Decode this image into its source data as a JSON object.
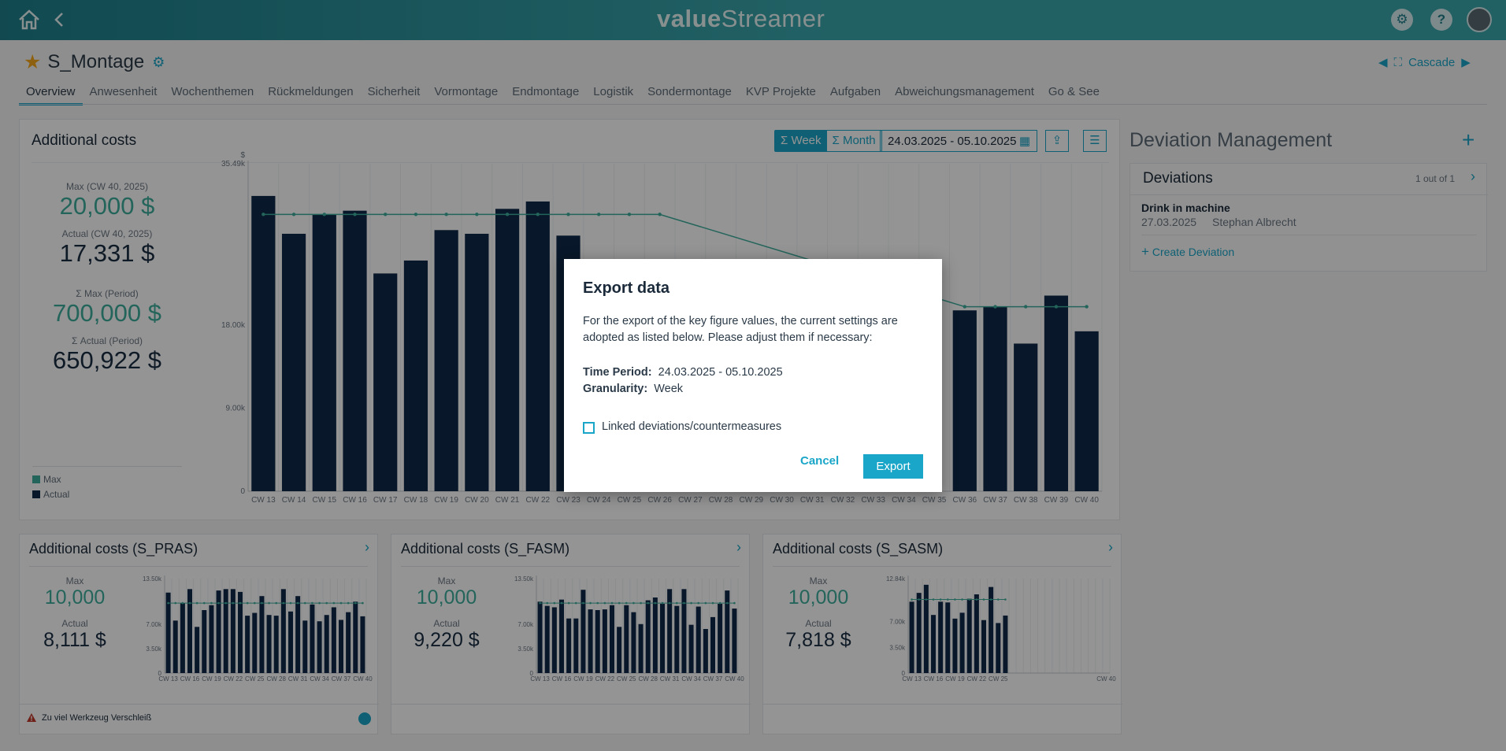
{
  "topbar": {
    "logo_left": "value",
    "logo_right": "Streamer",
    "help_label": "?"
  },
  "header": {
    "title": "S_Montage",
    "cascade_label": "Cascade"
  },
  "tabs": [
    "Overview",
    "Anwesenheit",
    "Wochenthemen",
    "Rückmeldungen",
    "Sicherheit",
    "Vormontage",
    "Endmontage",
    "Logistik",
    "Sondermontage",
    "KVP Projekte",
    "Aufgaben",
    "Abweichungsmanagement",
    "Go & See"
  ],
  "main": {
    "title": "Additional costs",
    "week_label": "Σ Week",
    "month_label": "Σ Month",
    "date_range": "24.03.2025 - 05.10.2025",
    "max_label": "Max (CW 40, 2025)",
    "max_value": "20,000 $",
    "actual_label": "Actual (CW 40, 2025)",
    "actual_value": "17,331 $",
    "sum_max_label": "Σ Max (Period)",
    "sum_max_value": "700,000 $",
    "sum_actual_label": "Σ Actual (Period)",
    "sum_actual_value": "650,922 $",
    "legend_max": "Max",
    "legend_actual": "Actual"
  },
  "chart_data": [
    {
      "type": "bar",
      "title": "Additional costs",
      "ylabel": "$",
      "ylim": [
        0,
        35490
      ],
      "yticks": [
        "35.49k",
        "18.00k",
        "9.00k",
        "0"
      ],
      "categories": [
        "CW 13",
        "CW 14",
        "CW 15",
        "CW 16",
        "CW 17",
        "CW 18",
        "CW 19",
        "CW 20",
        "CW 21",
        "CW 22",
        "CW 23",
        "CW 24",
        "CW 25",
        "CW 26",
        "CW 27",
        "CW 28",
        "CW 29",
        "CW 30",
        "CW 31",
        "CW 32",
        "CW 33",
        "CW 34",
        "CW 35",
        "CW 36",
        "CW 37",
        "CW 38",
        "CW 39",
        "CW 40"
      ],
      "series": [
        {
          "name": "Actual",
          "values": [
            32000,
            27900,
            30000,
            30400,
            23600,
            25000,
            28300,
            27900,
            30600,
            31400,
            27700,
            null,
            null,
            null,
            null,
            null,
            null,
            null,
            null,
            null,
            null,
            null,
            null,
            19600,
            20000,
            16000,
            21200,
            17331
          ]
        },
        {
          "name": "Max",
          "values": [
            30000,
            30000,
            30000,
            30000,
            30000,
            30000,
            30000,
            30000,
            30000,
            30000,
            30000,
            30000,
            30000,
            30000,
            null,
            null,
            null,
            null,
            null,
            null,
            null,
            null,
            null,
            20000,
            20000,
            20000,
            20000,
            20000
          ]
        }
      ],
      "legend": "bottom-left"
    },
    {
      "type": "bar",
      "title": "Additional costs (S_PRAS)",
      "yticks": [
        "13.50k",
        "7.00k",
        "3.50k",
        "0"
      ],
      "ylim": [
        0,
        13500
      ],
      "xticks": [
        "CW 13",
        "CW 16",
        "CW 19",
        "CW 22",
        "CW 25",
        "CW 28",
        "CW 31",
        "CW 34",
        "CW 37",
        "CW 40"
      ],
      "series": [
        {
          "name": "Actual",
          "values": [
            11500,
            7500,
            10000,
            12000,
            6600,
            9000,
            9700,
            11800,
            12000,
            12000,
            11600,
            8200,
            8600,
            11000,
            8300,
            8200,
            12000,
            8800,
            11000,
            7500,
            9800,
            7400,
            8300,
            9400,
            7600,
            8700,
            10200,
            8111
          ]
        },
        {
          "name": "Max",
          "values": [
            10000,
            10000,
            10000,
            10000,
            10000,
            10000,
            10000,
            10000,
            10000,
            10000,
            10000,
            10000,
            10000,
            10000,
            10000,
            10000,
            10000,
            10000,
            10000,
            10000,
            10000,
            10000,
            10000,
            10000,
            10000,
            10000,
            10000,
            10000
          ]
        }
      ]
    },
    {
      "type": "bar",
      "title": "Additional costs (S_FASM)",
      "yticks": [
        "13.50k",
        "7.00k",
        "3.50k",
        "0"
      ],
      "ylim": [
        0,
        13500
      ],
      "xticks": [
        "CW 13",
        "CW 16",
        "CW 19",
        "CW 22",
        "CW 25",
        "CW 28",
        "CW 31",
        "CW 34",
        "CW 37",
        "CW 40"
      ],
      "series": [
        {
          "name": "Actual",
          "values": [
            10200,
            9600,
            9400,
            10500,
            7800,
            7800,
            11900,
            9100,
            9000,
            9100,
            9700,
            6600,
            9700,
            8700,
            7000,
            10400,
            10800,
            9900,
            12000,
            9600,
            12000,
            6900,
            9500,
            6300,
            8000,
            9900,
            11800,
            9220
          ]
        },
        {
          "name": "Max",
          "values": [
            10000,
            10000,
            10000,
            10000,
            10000,
            10000,
            10000,
            10000,
            10000,
            10000,
            10000,
            10000,
            10000,
            10000,
            10000,
            10000,
            10000,
            10000,
            10000,
            10000,
            10000,
            10000,
            10000,
            10000,
            10000,
            10000,
            10000,
            10000
          ]
        }
      ]
    },
    {
      "type": "bar",
      "title": "Additional costs (S_SASM)",
      "yticks": [
        "12.84k",
        "7.00k",
        "3.50k",
        "0"
      ],
      "ylim": [
        0,
        12840
      ],
      "xticks": [
        "CW 13",
        "CW 16",
        "CW 19",
        "CW 22",
        "CW 25",
        "CW 40"
      ],
      "series": [
        {
          "name": "Actual",
          "values": [
            9700,
            10900,
            12000,
            7900,
            9700,
            9600,
            7400,
            8200,
            10100,
            10700,
            7200,
            11700,
            6800,
            7818
          ]
        },
        {
          "name": "Max",
          "values": [
            10000,
            10000,
            10000,
            10000,
            10000,
            10000,
            10000,
            10000,
            10000,
            10000,
            10000,
            10000,
            10000,
            10000
          ]
        }
      ]
    }
  ],
  "deviation_panel": {
    "title": "Deviation Management",
    "deviations_label": "Deviations",
    "count": "1 out of 1",
    "item_title": "Drink in machine",
    "item_date": "27.03.2025",
    "item_person": "Stephan Albrecht",
    "create_label": "Create Deviation"
  },
  "small_cards": [
    {
      "title": "Additional costs (S_PRAS)",
      "max_label": "Max",
      "max_value": "10,000",
      "actual_label": "Actual",
      "actual_value": "8,111 $",
      "alert": "Zu viel Werkzeug Verschleiß"
    },
    {
      "title": "Additional costs (S_FASM)",
      "max_label": "Max",
      "max_value": "10,000",
      "actual_label": "Actual",
      "actual_value": "9,220 $"
    },
    {
      "title": "Additional costs (S_SASM)",
      "max_label": "Max",
      "max_value": "10,000",
      "actual_label": "Actual",
      "actual_value": "7,818 $"
    }
  ],
  "modal": {
    "title": "Export data",
    "body": "For the export of the key figure values, the current settings are adopted as listed below. Please adjust them if necessary:",
    "period_label": "Time Period:",
    "period_value": "24.03.2025 - 05.10.2025",
    "granularity_label": "Granularity:",
    "granularity_value": "Week",
    "checkbox_label": "Linked deviations/countermeasures",
    "cancel_label": "Cancel",
    "export_label": "Export"
  },
  "colors": {
    "accent": "#1aa6c8",
    "teal": "#3fae9e",
    "navy": "#0f2848",
    "topbar": "#2f9aa3"
  }
}
